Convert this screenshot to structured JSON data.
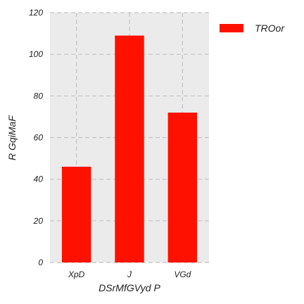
{
  "chart_data": {
    "type": "bar",
    "categories": [
      "XpD",
      "J",
      "VGd"
    ],
    "series": [
      {
        "name": "TROor",
        "values": [
          46,
          109,
          72
        ],
        "color": "#ff1100"
      }
    ],
    "xlabel": "DSrMfGVyd P",
    "ylabel": "R GqiMaF",
    "ylim": [
      0,
      120
    ],
    "yticks": [
      0,
      20,
      40,
      60,
      80,
      100,
      120
    ],
    "grid": true,
    "legend": "top-right, outside plot",
    "background": "#ebebeb"
  }
}
